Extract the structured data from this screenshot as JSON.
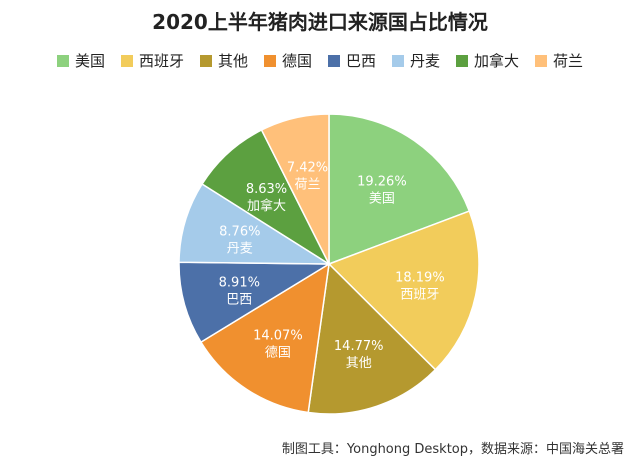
{
  "chart_data": {
    "type": "pie",
    "title": "2020上半年猪肉进口来源国占比情况",
    "categories": [
      "美国",
      "西班牙",
      "其他",
      "德国",
      "巴西",
      "丹麦",
      "加拿大",
      "荷兰"
    ],
    "values": [
      19.26,
      18.19,
      14.77,
      14.07,
      8.91,
      8.76,
      8.63,
      7.42
    ],
    "value_labels": [
      "19.26%",
      "18.19%",
      "14.77%",
      "14.07%",
      "8.91%",
      "8.76%",
      "8.63%",
      "7.42%"
    ],
    "colors": [
      "#8DD17E",
      "#F2CC5B",
      "#B5992F",
      "#F0902F",
      "#4C70A8",
      "#A5CBEA",
      "#5CA040",
      "#FFC07A"
    ],
    "legend_position": "top"
  },
  "footer": {
    "source": "制图工具：Yonghong Desktop，数据来源：中国海关总署"
  }
}
